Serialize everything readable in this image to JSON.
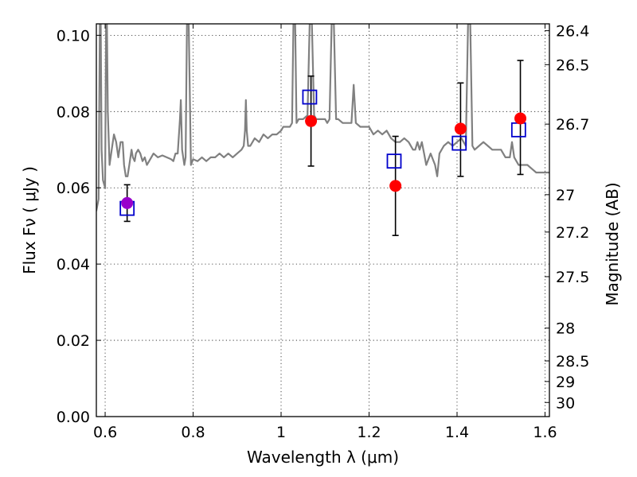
{
  "chart_data": {
    "type": "scatter",
    "xlabel": "Wavelength  λ (μm)",
    "ylabel": "Flux  Fν  ( μJy )",
    "y2label": "Magnitude (AB)",
    "xlim": [
      0.58,
      1.61
    ],
    "ylim": [
      0.0,
      0.103
    ],
    "grid": true,
    "x_ticks": [
      0.6,
      0.8,
      1.0,
      1.2,
      1.4,
      1.6
    ],
    "x_tick_labels": [
      "0.6",
      "0.8",
      "1",
      "1.2",
      "1.4",
      "1.6"
    ],
    "y_ticks": [
      0.0,
      0.02,
      0.04,
      0.06,
      0.08,
      0.1
    ],
    "y_tick_labels": [
      "0.00",
      "0.02",
      "0.04",
      "0.06",
      "0.08",
      "0.10"
    ],
    "y2_ticks": [
      {
        "label": "26.4",
        "flux": 0.1012
      },
      {
        "label": "26.5",
        "flux": 0.0923
      },
      {
        "label": "26.7",
        "flux": 0.0767
      },
      {
        "label": "27",
        "flux": 0.0582
      },
      {
        "label": "27.2",
        "flux": 0.0484
      },
      {
        "label": "27.5",
        "flux": 0.0367
      },
      {
        "label": "28",
        "flux": 0.0232
      },
      {
        "label": "28.5",
        "flux": 0.0146
      },
      {
        "label": "29",
        "flux": 0.0092
      },
      {
        "label": "30",
        "flux": 0.0037
      }
    ],
    "colors": {
      "spectrum": "#808080",
      "observed": "#ff0000",
      "model": "#0000cc",
      "overlap": "#9900cc",
      "errorbar": "#000000"
    },
    "series": [
      {
        "type": "line",
        "points": [
          [
            0.575,
            0.054
          ],
          [
            0.58,
            0.054
          ],
          [
            0.585,
            0.057
          ],
          [
            0.588,
            0.103
          ],
          [
            0.59,
            0.103
          ],
          [
            0.592,
            0.07
          ],
          [
            0.595,
            0.062
          ],
          [
            0.6,
            0.06
          ],
          [
            0.602,
            0.103
          ],
          [
            0.604,
            0.103
          ],
          [
            0.606,
            0.08
          ],
          [
            0.61,
            0.066
          ],
          [
            0.615,
            0.07
          ],
          [
            0.62,
            0.074
          ],
          [
            0.625,
            0.072
          ],
          [
            0.63,
            0.068
          ],
          [
            0.635,
            0.072
          ],
          [
            0.64,
            0.072
          ],
          [
            0.643,
            0.066
          ],
          [
            0.647,
            0.063
          ],
          [
            0.651,
            0.063
          ],
          [
            0.655,
            0.066
          ],
          [
            0.66,
            0.07
          ],
          [
            0.663,
            0.068
          ],
          [
            0.667,
            0.067
          ],
          [
            0.67,
            0.069
          ],
          [
            0.675,
            0.07
          ],
          [
            0.68,
            0.069
          ],
          [
            0.685,
            0.067
          ],
          [
            0.69,
            0.068
          ],
          [
            0.695,
            0.066
          ],
          [
            0.7,
            0.067
          ],
          [
            0.71,
            0.069
          ],
          [
            0.72,
            0.068
          ],
          [
            0.73,
            0.0685
          ],
          [
            0.74,
            0.068
          ],
          [
            0.75,
            0.0675
          ],
          [
            0.755,
            0.067
          ],
          [
            0.76,
            0.069
          ],
          [
            0.765,
            0.069
          ],
          [
            0.77,
            0.078
          ],
          [
            0.772,
            0.083
          ],
          [
            0.775,
            0.07
          ],
          [
            0.78,
            0.066
          ],
          [
            0.783,
            0.068
          ],
          [
            0.786,
            0.103
          ],
          [
            0.79,
            0.103
          ],
          [
            0.795,
            0.066
          ],
          [
            0.8,
            0.0675
          ],
          [
            0.81,
            0.067
          ],
          [
            0.82,
            0.068
          ],
          [
            0.83,
            0.067
          ],
          [
            0.84,
            0.068
          ],
          [
            0.85,
            0.068
          ],
          [
            0.86,
            0.069
          ],
          [
            0.87,
            0.068
          ],
          [
            0.88,
            0.069
          ],
          [
            0.89,
            0.068
          ],
          [
            0.9,
            0.069
          ],
          [
            0.91,
            0.07
          ],
          [
            0.915,
            0.071
          ],
          [
            0.918,
            0.075
          ],
          [
            0.92,
            0.083
          ],
          [
            0.922,
            0.075
          ],
          [
            0.925,
            0.071
          ],
          [
            0.93,
            0.071
          ],
          [
            0.94,
            0.073
          ],
          [
            0.95,
            0.072
          ],
          [
            0.96,
            0.074
          ],
          [
            0.97,
            0.073
          ],
          [
            0.98,
            0.074
          ],
          [
            0.99,
            0.074
          ],
          [
            1.0,
            0.075
          ],
          [
            1.005,
            0.076
          ],
          [
            1.01,
            0.076
          ],
          [
            1.02,
            0.076
          ],
          [
            1.025,
            0.077
          ],
          [
            1.028,
            0.103
          ],
          [
            1.032,
            0.103
          ],
          [
            1.035,
            0.077
          ],
          [
            1.04,
            0.078
          ],
          [
            1.05,
            0.078
          ],
          [
            1.06,
            0.079
          ],
          [
            1.065,
            0.103
          ],
          [
            1.07,
            0.103
          ],
          [
            1.075,
            0.079
          ],
          [
            1.08,
            0.078
          ],
          [
            1.09,
            0.078
          ],
          [
            1.1,
            0.078
          ],
          [
            1.105,
            0.077
          ],
          [
            1.11,
            0.078
          ],
          [
            1.115,
            0.103
          ],
          [
            1.12,
            0.103
          ],
          [
            1.125,
            0.078
          ],
          [
            1.13,
            0.078
          ],
          [
            1.14,
            0.077
          ],
          [
            1.15,
            0.077
          ],
          [
            1.16,
            0.077
          ],
          [
            1.165,
            0.087
          ],
          [
            1.17,
            0.077
          ],
          [
            1.18,
            0.076
          ],
          [
            1.19,
            0.076
          ],
          [
            1.2,
            0.076
          ],
          [
            1.21,
            0.074
          ],
          [
            1.22,
            0.075
          ],
          [
            1.23,
            0.074
          ],
          [
            1.24,
            0.075
          ],
          [
            1.25,
            0.073
          ],
          [
            1.26,
            0.072
          ],
          [
            1.27,
            0.072
          ],
          [
            1.28,
            0.073
          ],
          [
            1.29,
            0.072
          ],
          [
            1.3,
            0.07
          ],
          [
            1.305,
            0.07
          ],
          [
            1.31,
            0.072
          ],
          [
            1.315,
            0.07
          ],
          [
            1.32,
            0.072
          ],
          [
            1.325,
            0.069
          ],
          [
            1.33,
            0.066
          ],
          [
            1.34,
            0.069
          ],
          [
            1.35,
            0.066
          ],
          [
            1.355,
            0.063
          ],
          [
            1.36,
            0.069
          ],
          [
            1.37,
            0.071
          ],
          [
            1.38,
            0.072
          ],
          [
            1.39,
            0.071
          ],
          [
            1.4,
            0.072
          ],
          [
            1.41,
            0.073
          ],
          [
            1.42,
            0.071
          ],
          [
            1.425,
            0.103
          ],
          [
            1.43,
            0.103
          ],
          [
            1.435,
            0.071
          ],
          [
            1.44,
            0.07
          ],
          [
            1.45,
            0.071
          ],
          [
            1.46,
            0.072
          ],
          [
            1.47,
            0.071
          ],
          [
            1.48,
            0.07
          ],
          [
            1.49,
            0.07
          ],
          [
            1.5,
            0.07
          ],
          [
            1.51,
            0.068
          ],
          [
            1.52,
            0.068
          ],
          [
            1.525,
            0.072
          ],
          [
            1.53,
            0.068
          ],
          [
            1.54,
            0.066
          ],
          [
            1.55,
            0.066
          ],
          [
            1.56,
            0.066
          ],
          [
            1.57,
            0.065
          ],
          [
            1.58,
            0.064
          ],
          [
            1.59,
            0.064
          ],
          [
            1.6,
            0.064
          ],
          [
            1.61,
            0.064
          ]
        ]
      },
      {
        "type": "scatter",
        "x": [
          0.65,
          1.065,
          1.257,
          1.405,
          1.54
        ],
        "y": [
          0.0546,
          0.0838,
          0.067,
          0.0717,
          0.0752
        ]
      },
      {
        "type": "scatter",
        "x": [
          0.65,
          1.068,
          1.26,
          1.408,
          1.544
        ],
        "y": [
          0.056,
          0.0775,
          0.0605,
          0.0755,
          0.0782
        ],
        "yerr_low": [
          0.0048,
          0.0118,
          0.013,
          0.0125,
          0.0147
        ],
        "yerr_high": [
          0.0048,
          0.0118,
          0.013,
          0.012,
          0.0152
        ]
      }
    ]
  }
}
